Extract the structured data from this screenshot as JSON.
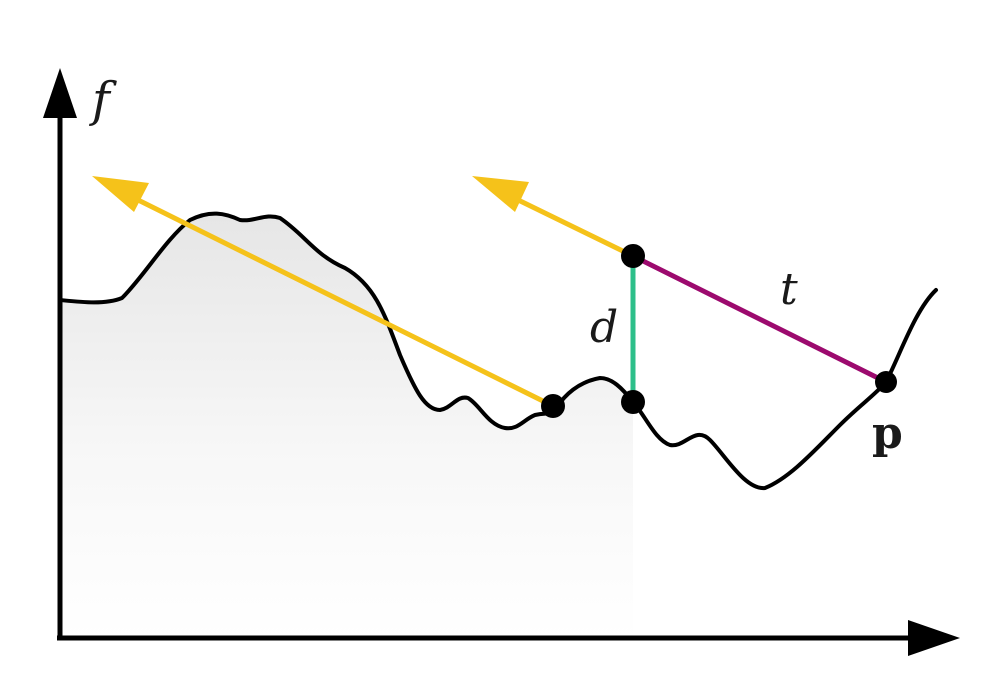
{
  "labels": {
    "y_axis": "f",
    "distance": "d",
    "parameter": "t",
    "point": "p"
  },
  "colors": {
    "curve": "#000000",
    "axes": "#000000",
    "ray": "#f5c21a",
    "t_segment": "#9c0a6e",
    "d_segment": "#2dbf8a",
    "fill_top": "#e9e9e9"
  }
}
